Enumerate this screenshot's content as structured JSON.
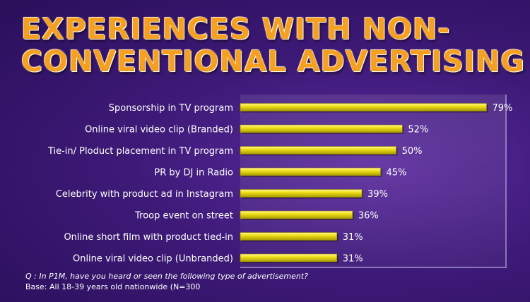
{
  "title_line1": "EXPERIENCES WITH NON-",
  "title_line2": "CONVENTIONAL ADVERTISING",
  "chart_data": {
    "type": "bar",
    "orientation": "horizontal",
    "categories": [
      "Sponsorship in TV program",
      "Online viral video clip (Branded)",
      "Tie-in/ Ploduct placement in TV program",
      "PR by DJ in Radio",
      "Celebrity with product ad in Instagram",
      "Troop event on street",
      "Online short film with product tied-in",
      "Online viral video clip (Unbranded)"
    ],
    "values": [
      79,
      52,
      50,
      45,
      39,
      36,
      31,
      31
    ],
    "value_suffix": "%",
    "xlim": [
      0,
      85
    ],
    "grid": false,
    "bar_color": "#e8d80a"
  },
  "footnote": {
    "question": "Q : In P1M, have you heard or seen the following type of advertisement?",
    "base": "Base: All 18-39 years old nationwide (N=300"
  }
}
